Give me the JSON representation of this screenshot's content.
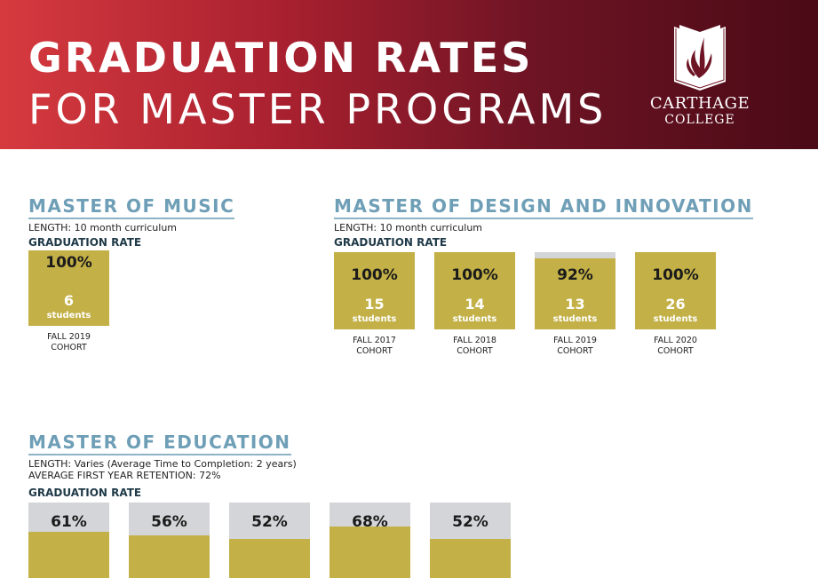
{
  "header": {
    "title_line1": "GRADUATION RATES",
    "title_line2": "FOR MASTER PROGRAMS",
    "logo_line1": "CARTHAGE",
    "logo_line2": "COLLEGE"
  },
  "colors": {
    "fill": "#c3b046",
    "remainder": "#d4d5d8",
    "heading": "#6f9fb7",
    "banner_start": "#d63a3f",
    "banner_end": "#4a0a16"
  },
  "chart_data": [
    {
      "type": "bar",
      "title": "MASTER OF MUSIC",
      "length": "LENGTH: 10 month curriculum",
      "label": "GRADUATION RATE",
      "unit_label": "students",
      "bars": [
        {
          "pct": 100,
          "pct_label": "100%",
          "students": "6",
          "cohort1": "FALL 2019",
          "cohort2": "COHORT"
        }
      ]
    },
    {
      "type": "bar",
      "title": "MASTER OF DESIGN AND INNOVATION",
      "length": "LENGTH: 10 month curriculum",
      "label": "GRADUATION RATE",
      "unit_label": "students",
      "bars": [
        {
          "pct": 100,
          "pct_label": "100%",
          "students": "15",
          "cohort1": "FALL 2017",
          "cohort2": "COHORT"
        },
        {
          "pct": 100,
          "pct_label": "100%",
          "students": "14",
          "cohort1": "FALL 2018",
          "cohort2": "COHORT"
        },
        {
          "pct": 92,
          "pct_label": "92%",
          "students": "13",
          "cohort1": "FALL 2019",
          "cohort2": "COHORT"
        },
        {
          "pct": 100,
          "pct_label": "100%",
          "students": "26",
          "cohort1": "FALL 2020",
          "cohort2": "COHORT"
        }
      ]
    },
    {
      "type": "bar",
      "title": "MASTER OF EDUCATION",
      "length": "LENGTH: Varies (Average Time to Completion: 2 years)",
      "retention": "AVERAGE FIRST YEAR RETENTION: 72%",
      "label": "GRADUATION RATE",
      "bars": [
        {
          "pct": 61,
          "pct_label": "61%"
        },
        {
          "pct": 56,
          "pct_label": "56%"
        },
        {
          "pct": 52,
          "pct_label": "52%"
        },
        {
          "pct": 68,
          "pct_label": "68%"
        },
        {
          "pct": 52,
          "pct_label": "52%"
        }
      ]
    }
  ]
}
